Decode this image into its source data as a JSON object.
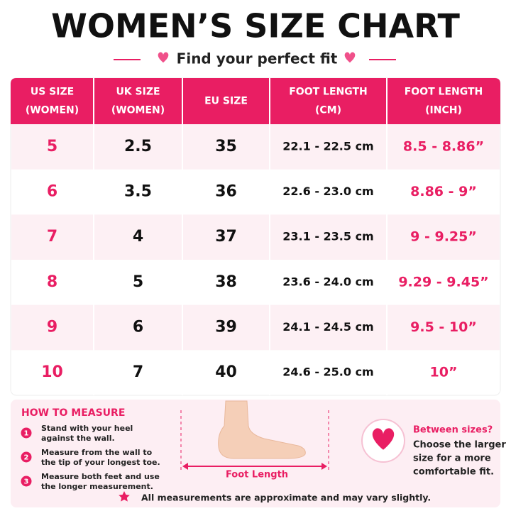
{
  "header": {
    "title": "WOMEN’S SIZE CHART",
    "subtitle": "Find your perfect fit"
  },
  "table": {
    "columns": [
      [
        "US SIZE",
        "(WOMEN)"
      ],
      [
        "UK SIZE",
        "(WOMEN)"
      ],
      [
        "EU SIZE"
      ],
      [
        "FOOT LENGTH",
        "(CM)"
      ],
      [
        "FOOT LENGTH",
        "(INCH)"
      ]
    ],
    "rows": [
      [
        "5",
        "2.5",
        "35",
        "22.1 - 22.5 cm",
        "8.5 - 8.86”"
      ],
      [
        "6",
        "3.5",
        "36",
        "22.6 - 23.0 cm",
        "8.86 - 9”"
      ],
      [
        "7",
        "4",
        "37",
        "23.1 - 23.5 cm",
        "9 - 9.25”"
      ],
      [
        "8",
        "5",
        "38",
        "23.6 - 24.0 cm",
        "9.29 - 9.45”"
      ],
      [
        "9",
        "6",
        "39",
        "24.1 - 24.5 cm",
        "9.5 - 10”"
      ],
      [
        "10",
        "7",
        "40",
        "24.6 - 25.0 cm",
        "10”"
      ]
    ]
  },
  "how_to_measure": {
    "title": "HOW TO MEASURE",
    "steps": [
      {
        "number": "1",
        "lines": [
          "Stand with your heel",
          "against the wall."
        ]
      },
      {
        "number": "2",
        "lines": [
          "Measure from the wall to",
          "the tip of your longest toe."
        ]
      },
      {
        "number": "3",
        "lines": [
          "Measure both feet and use",
          "the longer measurement."
        ]
      }
    ]
  },
  "illustration": {
    "label": "Foot Length"
  },
  "tip": {
    "title": "Between sizes?",
    "lines": [
      "Choose the larger",
      "size for a more",
      "comfortable fit."
    ]
  },
  "footer": {
    "note": "All measurements are approximate and may vary slightly."
  }
}
